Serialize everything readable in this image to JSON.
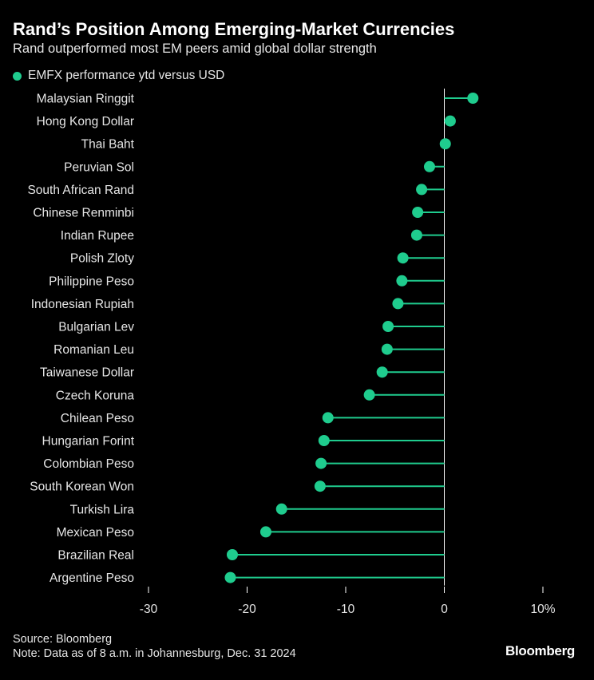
{
  "header": {
    "title": "Rand’s Position Among Emerging-Market Currencies",
    "subtitle": "Rand outperformed most EM peers amid global dollar strength"
  },
  "footer": {
    "source": "Source: Bloomberg",
    "note": "Note: Data as of 8 a.m. in Johannesburg, Dec. 31 2024",
    "brand": "Bloomberg"
  },
  "colors": {
    "series": "#1fcc8e",
    "axis": "#ffffff",
    "background": "#000000"
  },
  "chart_data": {
    "type": "lollipop",
    "title": "Rand’s Position Among Emerging-Market Currencies",
    "subtitle": "Rand outperformed most EM peers amid global dollar strength",
    "legend": {
      "position": "top-left",
      "entries": [
        "EMFX performance ytd versus USD"
      ]
    },
    "xlabel": "",
    "ylabel": "",
    "xlim": [
      -30,
      10
    ],
    "x_ticks": [
      -30,
      -20,
      -10,
      0,
      10
    ],
    "x_tick_labels": [
      "-30",
      "-20",
      "-10",
      "0",
      "10%"
    ],
    "grid": false,
    "categories": [
      "Malaysian Ringgit",
      "Hong Kong Dollar",
      "Thai Baht",
      "Peruvian Sol",
      "South African Rand",
      "Chinese Renminbi",
      "Indian Rupee",
      "Polish Zloty",
      "Philippine Peso",
      "Indonesian Rupiah",
      "Bulgarian Lev",
      "Romanian Leu",
      "Taiwanese Dollar",
      "Czech Koruna",
      "Chilean Peso",
      "Hungarian Forint",
      "Colombian Peso",
      "South Korean Won",
      "Turkish Lira",
      "Mexican Peso",
      "Brazilian Real",
      "Argentine Peso"
    ],
    "series": [
      {
        "name": "EMFX performance ytd versus USD",
        "values": [
          2.9,
          0.6,
          0.1,
          -1.5,
          -2.3,
          -2.7,
          -2.8,
          -4.2,
          -4.3,
          -4.7,
          -5.7,
          -5.8,
          -6.3,
          -7.6,
          -11.8,
          -12.2,
          -12.5,
          -12.6,
          -16.5,
          -18.1,
          -21.5,
          -21.7
        ]
      }
    ]
  }
}
